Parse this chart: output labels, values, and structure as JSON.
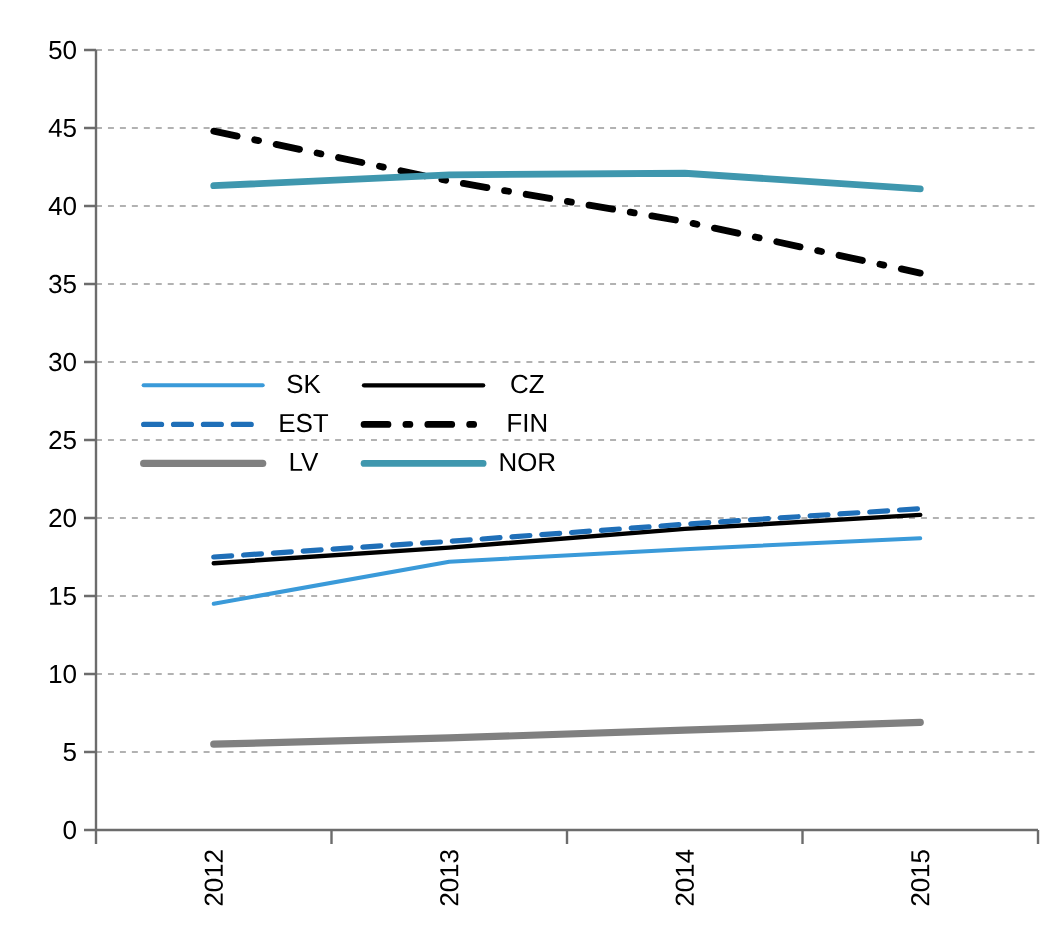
{
  "chart_data": {
    "type": "line",
    "categories": [
      "2012",
      "2013",
      "2014",
      "2015"
    ],
    "series": [
      {
        "name": "SK",
        "color": "#3a9ad9",
        "line_style": "solid",
        "values": [
          14.5,
          17.2,
          18.0,
          18.7
        ]
      },
      {
        "name": "CZ",
        "color": "#000000",
        "line_style": "solid",
        "values": [
          17.1,
          18.1,
          19.3,
          20.2
        ]
      },
      {
        "name": "EST",
        "color": "#1f6fb8",
        "line_style": "dashed",
        "values": [
          17.5,
          18.5,
          19.6,
          20.6
        ]
      },
      {
        "name": "FIN",
        "color": "#000000",
        "line_style": "dashdot",
        "values": [
          44.8,
          41.6,
          39.0,
          35.7
        ]
      },
      {
        "name": "LV",
        "color": "#808080",
        "line_style": "solid",
        "values": [
          5.5,
          5.9,
          6.4,
          6.9
        ]
      },
      {
        "name": "NOR",
        "color": "#3f97ae",
        "line_style": "solid",
        "values": [
          41.3,
          42.0,
          42.1,
          41.1
        ]
      }
    ],
    "ylim": [
      0,
      50
    ],
    "yticks": [
      0,
      5,
      10,
      15,
      20,
      25,
      30,
      35,
      40,
      45,
      50
    ],
    "grid": "y",
    "legend": "left",
    "marker": "none"
  }
}
